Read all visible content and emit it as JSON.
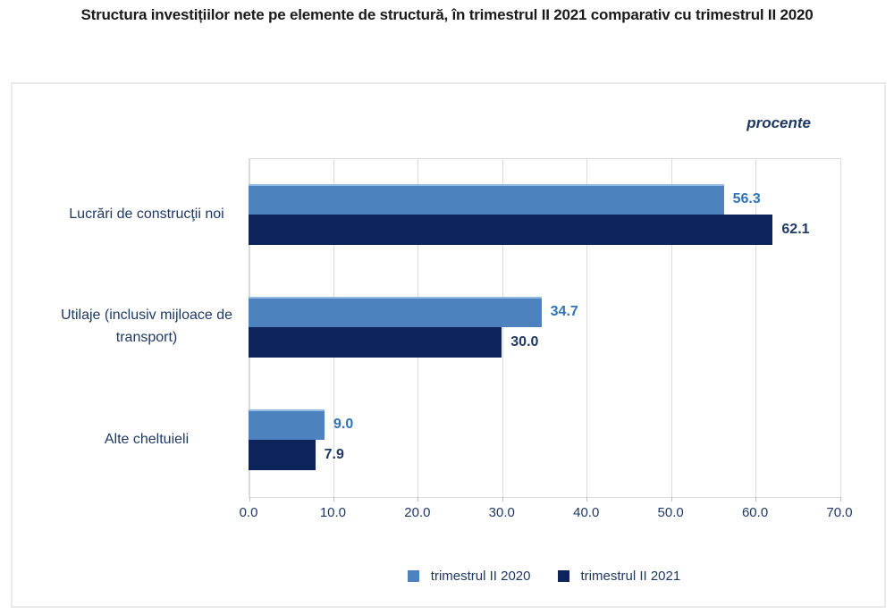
{
  "title": "Structura investițiilor nete pe elemente de structură, în trimestrul II 2021 comparativ cu trimestrul II 2020",
  "unit_label": "procente",
  "colors": {
    "series_2020_bar": "#4e82be",
    "series_2020_value_text": "#2e74b6",
    "series_2021_bar": "#0c2459",
    "series_2021_value_text": "#1f3864",
    "axis_text": "#1f3864",
    "gridline": "#dcdcdc",
    "frame_border": "#e9e9e9",
    "title_text": "#1a1a1a"
  },
  "chart_data": {
    "type": "bar",
    "orientation": "horizontal",
    "title": "Structura investițiilor nete pe elemente de structură, în trimestrul II 2021 comparativ cu trimestrul II 2020",
    "xlabel": "procente",
    "categories": [
      "Lucrări de construcţii noi",
      "Utilaje (inclusiv mijloace de transport)",
      "Alte cheltuieli"
    ],
    "series": [
      {
        "name": "trimestrul II 2020",
        "color": "#4e82be",
        "value_text_color": "#2e74b6",
        "values": [
          56.3,
          34.7,
          9.0
        ]
      },
      {
        "name": "trimestrul II 2021",
        "color": "#0c2459",
        "value_text_color": "#1f3864",
        "values": [
          62.1,
          30.0,
          7.9
        ]
      }
    ],
    "xlim": [
      0,
      70
    ],
    "x_ticks": [
      "0.0",
      "10.0",
      "20.0",
      "30.0",
      "40.0",
      "50.0",
      "60.0",
      "70.0"
    ],
    "grid": "vertical",
    "legend_position": "bottom",
    "value_labels": true,
    "value_label_decimals": 1
  }
}
